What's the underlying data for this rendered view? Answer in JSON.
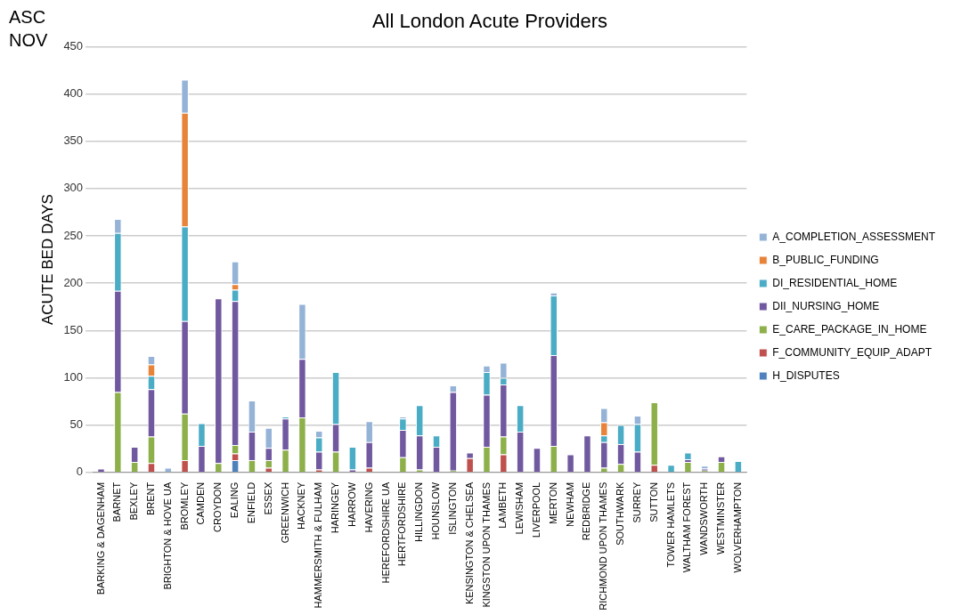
{
  "chart_data": {
    "type": "bar",
    "title": "All London Acute Providers",
    "ylabel": "ACUTE BED DAYS",
    "annotations": [
      "ASC",
      "NOV"
    ],
    "categories": [
      "BARKING & DAGENHAM",
      "BARNET",
      "BEXLEY",
      "BRENT",
      "BRIGHTON & HOVE UA",
      "BROMLEY",
      "CAMDEN",
      "CROYDON",
      "EALING",
      "ENFIELD",
      "ESSEX",
      "GREENWICH",
      "HACKNEY",
      "HAMMERSMITH & FULHAM",
      "HARINGEY",
      "HARROW",
      "HAVERING",
      "HEREFORDSHIRE UA",
      "HERTFORDSHIRE",
      "HILLINGDON",
      "HOUNSLOW",
      "ISLINGTON",
      "KENSINGTON & CHELSEA",
      "KINGSTON UPON THAMES",
      "LAMBETH",
      "LEWISHAM",
      "LIVERPOOL",
      "MERTON",
      "NEWHAM",
      "REDBRIDGE",
      "RICHMOND UPON THAMES",
      "SOUTHWARK",
      "SURREY",
      "SUTTON",
      "TOWER HAMLETS",
      "WALTHAM FOREST",
      "WANDSWORTH",
      "WESTMINSTER",
      "WOLVERHAMPTON"
    ],
    "stacked": true,
    "series": [
      {
        "name": "H_DISPUTES",
        "color": "#4f81bd",
        "values": [
          null,
          null,
          null,
          null,
          null,
          null,
          null,
          null,
          13,
          null,
          null,
          null,
          null,
          null,
          null,
          null,
          null,
          null,
          null,
          null,
          null,
          null,
          null,
          null,
          null,
          null,
          null,
          null,
          null,
          null,
          null,
          null,
          null,
          null,
          null,
          null,
          null,
          null,
          null
        ]
      },
      {
        "name": "F_COMMUNITY_EQUIP_ADAPT",
        "color": "#c0504d",
        "values": [
          null,
          null,
          null,
          10,
          null,
          13,
          null,
          null,
          7,
          null,
          5,
          null,
          null,
          3,
          null,
          null,
          5,
          null,
          null,
          null,
          null,
          null,
          15,
          null,
          19,
          null,
          null,
          null,
          null,
          null,
          null,
          null,
          null,
          8,
          null,
          null,
          null,
          null,
          null
        ]
      },
      {
        "name": "E_CARE_PACKAGE_IN_HOME",
        "color": "#8db04a",
        "values": [
          null,
          85,
          11,
          28,
          null,
          49,
          null,
          10,
          9,
          13,
          8,
          24,
          58,
          null,
          22,
          null,
          null,
          null,
          16,
          3,
          null,
          2,
          null,
          27,
          19,
          null,
          null,
          28,
          null,
          null,
          5,
          9,
          null,
          66,
          null,
          11,
          2,
          11,
          null
        ]
      },
      {
        "name": "DII_NURSING_HOME",
        "color": "#7159a0",
        "values": [
          4,
          107,
          16,
          50,
          null,
          98,
          28,
          174,
          152,
          30,
          13,
          33,
          62,
          19,
          29,
          3,
          27,
          null,
          29,
          36,
          27,
          83,
          6,
          55,
          55,
          43,
          26,
          96,
          19,
          39,
          27,
          21,
          22,
          null,
          null,
          3,
          2,
          6,
          null
        ]
      },
      {
        "name": "DI_RESIDENTIAL_HOME",
        "color": "#4bacc6",
        "values": [
          null,
          61,
          null,
          14,
          null,
          100,
          24,
          null,
          12,
          null,
          null,
          2,
          null,
          15,
          55,
          24,
          null,
          null,
          12,
          32,
          12,
          null,
          null,
          24,
          7,
          28,
          null,
          63,
          null,
          null,
          7,
          20,
          29,
          null,
          8,
          7,
          null,
          null,
          12
        ]
      },
      {
        "name": "B_PUBLIC_FUNDING",
        "color": "#e8833a",
        "values": [
          null,
          null,
          null,
          12,
          null,
          120,
          null,
          null,
          6,
          null,
          null,
          null,
          null,
          null,
          null,
          null,
          null,
          null,
          null,
          null,
          null,
          null,
          null,
          null,
          null,
          null,
          null,
          null,
          null,
          null,
          14,
          null,
          null,
          null,
          null,
          null,
          null,
          null,
          null
        ]
      },
      {
        "name": "A_COMPLETION_ASSESSMENT",
        "color": "#95b3d7",
        "values": [
          null,
          15,
          null,
          9,
          5,
          35,
          null,
          null,
          24,
          33,
          21,
          null,
          58,
          7,
          null,
          null,
          22,
          null,
          2,
          null,
          null,
          7,
          null,
          7,
          16,
          null,
          null,
          3,
          null,
          null,
          15,
          null,
          9,
          null,
          null,
          null,
          3,
          null,
          null
        ]
      }
    ],
    "ylim": [
      0,
      450
    ],
    "yticks": [
      0,
      50,
      100,
      150,
      200,
      250,
      300,
      350,
      400,
      450
    ],
    "grid": "y",
    "legend": "right"
  }
}
